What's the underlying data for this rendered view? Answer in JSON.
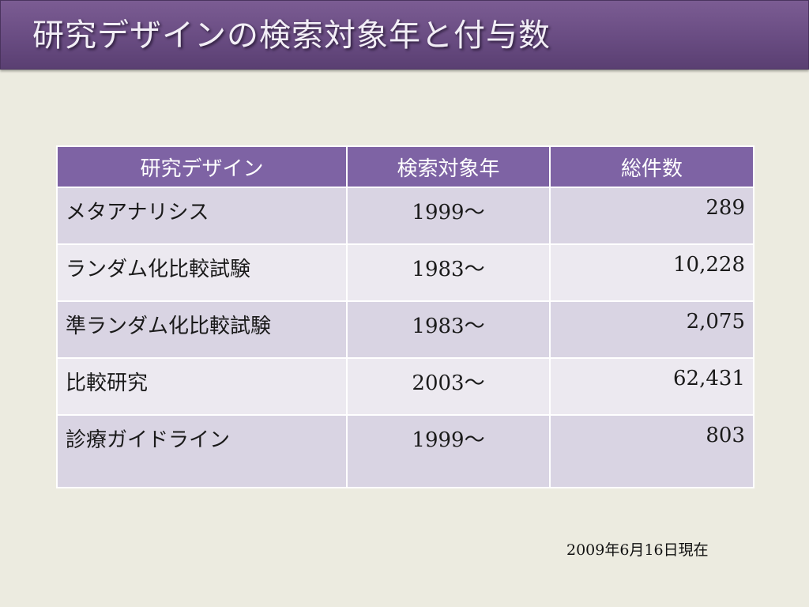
{
  "slide": {
    "title": "研究デザインの検索対象年と付与数",
    "footnote": "2009年6月16日現在"
  },
  "table": {
    "headers": [
      "研究デザイン",
      "検索対象年",
      "総件数"
    ],
    "rows": [
      {
        "design": "メタアナリシス",
        "year": "1999〜",
        "count": "289"
      },
      {
        "design": "ランダム化比較試験",
        "year": "1983〜",
        "count": "10,228"
      },
      {
        "design": "準ランダム化比較試験",
        "year": "1983〜",
        "count": "2,075"
      },
      {
        "design": "比較研究",
        "year": "2003〜",
        "count": "62,431"
      },
      {
        "design": "診療ガイドライン",
        "year": "1999〜",
        "count": "803"
      }
    ]
  },
  "colors": {
    "title_bar": "#694c82",
    "header_bg": "#7e63a4",
    "row_dark": "#d9d4e3",
    "row_light": "#ece9f0",
    "slide_bg": "#ecebe0"
  }
}
